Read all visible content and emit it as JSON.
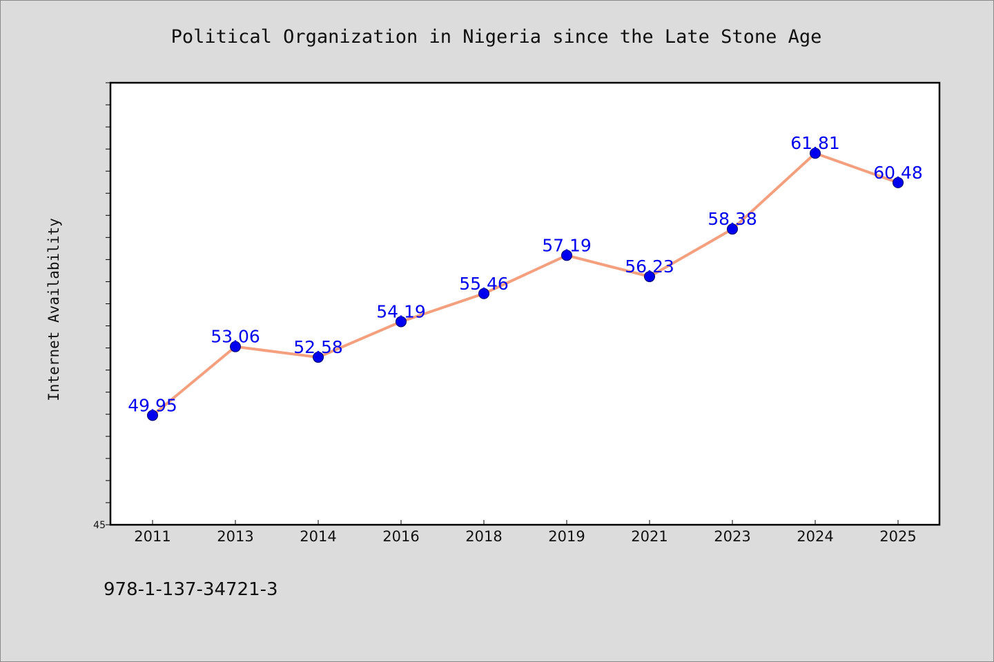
{
  "chart_data": {
    "type": "line",
    "title": "Political Organization in Nigeria since the Late Stone Age",
    "xlabel": "",
    "ylabel": "Internet Availability",
    "categories": [
      "2011",
      "2013",
      "2014",
      "2016",
      "2018",
      "2019",
      "2021",
      "2023",
      "2024",
      "2025"
    ],
    "series": [
      {
        "values": [
          49.95,
          53.06,
          52.58,
          54.19,
          55.46,
          57.19,
          56.23,
          58.38,
          61.81,
          60.48
        ]
      }
    ],
    "data_labels": [
      "49.95",
      "53.06",
      "52.58",
      "54.19",
      "55.46",
      "57.19",
      "56.23",
      "58.38",
      "61.81",
      "60.48"
    ],
    "ylim": [
      45,
      65
    ],
    "yticks_labeled": [
      "45"
    ],
    "grid": false,
    "legend": "none"
  },
  "footer_text": "978-1-137-34721-3",
  "colors": {
    "background": "#dcdcdc",
    "plot_background": "#ffffff",
    "line": "#f4a07f",
    "marker": "#0000ee",
    "data_label": "#0000ee",
    "axis": "#000000"
  }
}
